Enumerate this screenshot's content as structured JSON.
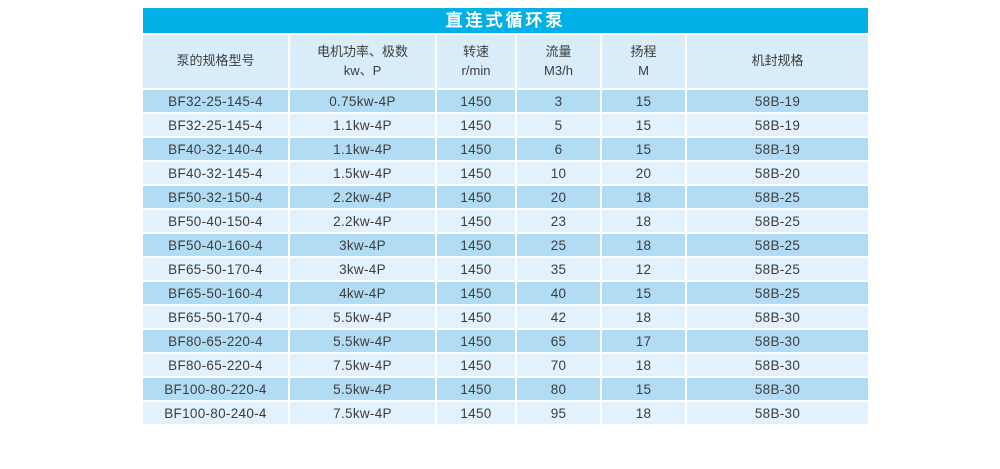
{
  "title": "直连式循环泵",
  "colors": {
    "title_bg": "#00b0e6",
    "title_text": "#ffffff",
    "header_bg": "#d8ecf9",
    "row_dark": "#b2dcf4",
    "row_light": "#e2f1fb",
    "text": "#3d3d3d",
    "page_bg": "#ffffff"
  },
  "table": {
    "columns": [
      {
        "id": "model",
        "label": "泵的规格型号",
        "label2": ""
      },
      {
        "id": "power",
        "label": "电机功率、极数",
        "label2": "kw、P"
      },
      {
        "id": "speed",
        "label": "转速",
        "label2": "r/min"
      },
      {
        "id": "flow",
        "label": "流量",
        "label2": "M3/h"
      },
      {
        "id": "head",
        "label": "扬程",
        "label2": "M"
      },
      {
        "id": "seal",
        "label": "机封规格",
        "label2": ""
      }
    ],
    "rows": [
      [
        "BF32-25-145-4",
        "0.75kw-4P",
        "1450",
        "3",
        "15",
        "58B-19"
      ],
      [
        "BF32-25-145-4",
        "1.1kw-4P",
        "1450",
        "5",
        "15",
        "58B-19"
      ],
      [
        "BF40-32-140-4",
        "1.1kw-4P",
        "1450",
        "6",
        "15",
        "58B-19"
      ],
      [
        "BF40-32-145-4",
        "1.5kw-4P",
        "1450",
        "10",
        "20",
        "58B-20"
      ],
      [
        "BF50-32-150-4",
        "2.2kw-4P",
        "1450",
        "20",
        "18",
        "58B-25"
      ],
      [
        "BF50-40-150-4",
        "2.2kw-4P",
        "1450",
        "23",
        "18",
        "58B-25"
      ],
      [
        "BF50-40-160-4",
        "3kw-4P",
        "1450",
        "25",
        "18",
        "58B-25"
      ],
      [
        "BF65-50-170-4",
        "3kw-4P",
        "1450",
        "35",
        "12",
        "58B-25"
      ],
      [
        "BF65-50-160-4",
        "4kw-4P",
        "1450",
        "40",
        "15",
        "58B-25"
      ],
      [
        "BF65-50-170-4",
        "5.5kw-4P",
        "1450",
        "42",
        "18",
        "58B-30"
      ],
      [
        "BF80-65-220-4",
        "5.5kw-4P",
        "1450",
        "65",
        "17",
        "58B-30"
      ],
      [
        "BF80-65-220-4",
        "7.5kw-4P",
        "1450",
        "70",
        "18",
        "58B-30"
      ],
      [
        "BF100-80-220-4",
        "5.5kw-4P",
        "1450",
        "80",
        "15",
        "58B-30"
      ],
      [
        "BF100-80-240-4",
        "7.5kw-4P",
        "1450",
        "95",
        "18",
        "58B-30"
      ]
    ]
  }
}
